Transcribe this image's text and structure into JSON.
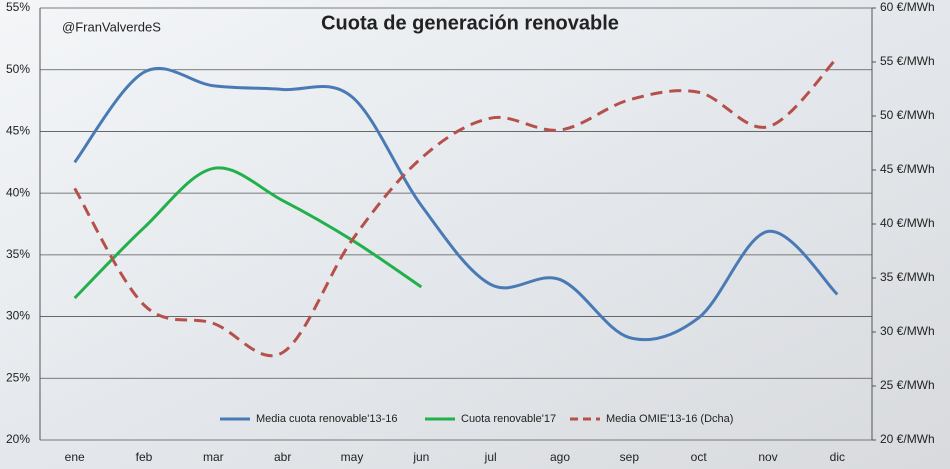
{
  "chart_data": {
    "type": "line",
    "title": "Cuota de generación renovable",
    "annotation": "@FranValverdeS",
    "categories": [
      "ene",
      "feb",
      "mar",
      "abr",
      "may",
      "jun",
      "jul",
      "ago",
      "sep",
      "oct",
      "nov",
      "dic"
    ],
    "series": [
      {
        "name": "Media cuota renovable'13-16",
        "color": "#4a7ab5",
        "style": "solid",
        "values": [
          42.5,
          49.8,
          48.7,
          48.4,
          47.8,
          39.0,
          32.6,
          33.0,
          28.3,
          29.9,
          36.9,
          31.8
        ]
      },
      {
        "name": "Cuota renovable'17",
        "color": "#22b04a",
        "style": "solid",
        "values": [
          31.5,
          37.2,
          42.0,
          39.4,
          36.2,
          32.4,
          null,
          null,
          null,
          null,
          null,
          null
        ]
      },
      {
        "name": "Media OMIE'13-16 (Dcha)",
        "color": "#b5504a",
        "style": "dashed",
        "axis": "y2",
        "values": [
          43.3,
          32.5,
          30.8,
          28.1,
          38.5,
          46.1,
          49.8,
          48.7,
          51.5,
          52.2,
          49.0,
          55.4
        ]
      }
    ],
    "ylim": [
      20,
      55
    ],
    "yticks": [
      {
        "value": 20,
        "label": "20%"
      },
      {
        "value": 25,
        "label": "25%"
      },
      {
        "value": 30,
        "label": "30%"
      },
      {
        "value": 35,
        "label": "35%"
      },
      {
        "value": 40,
        "label": "40%"
      },
      {
        "value": 45,
        "label": "45%"
      },
      {
        "value": 50,
        "label": "50%"
      },
      {
        "value": 55,
        "label": "55%"
      }
    ],
    "y2lim": [
      20,
      60
    ],
    "y2ticks": [
      {
        "value": 20,
        "label": "20 €/MWh"
      },
      {
        "value": 25,
        "label": "25 €/MWh"
      },
      {
        "value": 30,
        "label": "30 €/MWh"
      },
      {
        "value": 35,
        "label": "35 €/MWh"
      },
      {
        "value": 40,
        "label": "40 €/MWh"
      },
      {
        "value": 45,
        "label": "45 €/MWh"
      },
      {
        "value": 50,
        "label": "50 €/MWh"
      },
      {
        "value": 55,
        "label": "55 €/MWh"
      },
      {
        "value": 60,
        "label": "60 €/MWh"
      }
    ],
    "grid": true,
    "legend": "lower center"
  }
}
